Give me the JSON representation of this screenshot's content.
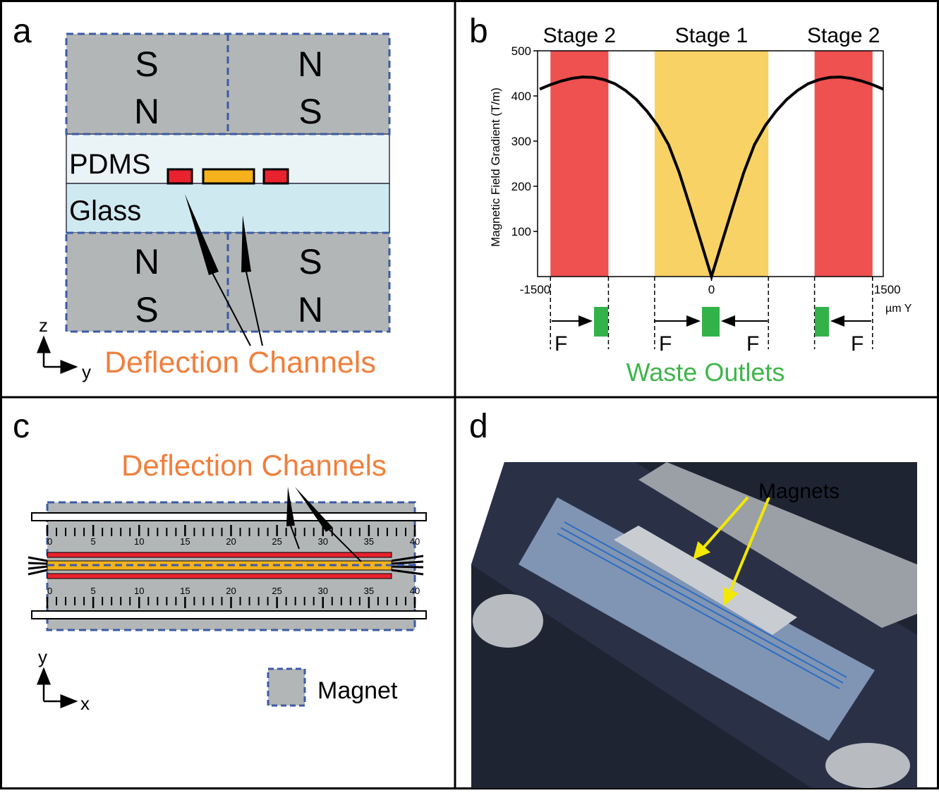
{
  "panel_a": {
    "label": "a",
    "top_magnets": [
      {
        "upper": "S",
        "lower": "N"
      },
      {
        "upper": "N",
        "lower": "S"
      }
    ],
    "bottom_magnets": [
      {
        "upper": "N",
        "lower": "S"
      },
      {
        "upper": "S",
        "lower": "N"
      }
    ],
    "layers": [
      "PDMS",
      "Glass"
    ],
    "axis_vertical": "z",
    "axis_horizontal": "y",
    "annotation": "Deflection Channels"
  },
  "chart_data": {
    "type": "line",
    "panel_label": "b",
    "y_label": "Magnetic Field Gradient (T/m)",
    "x_label": "µm Y",
    "xlim": [
      -1620,
      1600
    ],
    "xticks": [
      -1500,
      0,
      1500
    ],
    "ylim": [
      0,
      500
    ],
    "yticks": [
      100,
      200,
      300,
      400,
      500
    ],
    "bands": [
      {
        "label": "Stage 2",
        "from": -1500,
        "to": -960,
        "color": "#ef5050"
      },
      {
        "label": "Stage 1",
        "from": -530,
        "to": 530,
        "color": "#f8d264"
      },
      {
        "label": "Stage 2",
        "from": 960,
        "to": 1500,
        "color": "#ef5050"
      }
    ],
    "x": [
      -1600,
      -1500,
      -1400,
      -1300,
      -1200,
      -1100,
      -1000,
      -900,
      -800,
      -700,
      -600,
      -500,
      -400,
      -300,
      -200,
      -100,
      0,
      100,
      200,
      300,
      400,
      500,
      600,
      700,
      800,
      900,
      1000,
      1100,
      1200,
      1300,
      1400,
      1500,
      1600
    ],
    "values": [
      415,
      425,
      433,
      439,
      442,
      441,
      436,
      427,
      412,
      392,
      366,
      334,
      292,
      230,
      155,
      78,
      0,
      78,
      155,
      230,
      292,
      334,
      366,
      392,
      412,
      427,
      436,
      441,
      442,
      439,
      433,
      425,
      415
    ],
    "color": "#000000",
    "force_label": "F",
    "outlets_label": "Waste Outlets"
  },
  "panel_c": {
    "label": "c",
    "annotation": "Deflection Channels",
    "ruler_ticks": [
      0,
      5,
      10,
      15,
      20,
      25,
      30,
      35,
      40
    ],
    "legend": "Magnet",
    "axis_vertical": "y",
    "axis_horizontal": "x"
  },
  "panel_d": {
    "label": "d",
    "annotation": "Magnets"
  }
}
